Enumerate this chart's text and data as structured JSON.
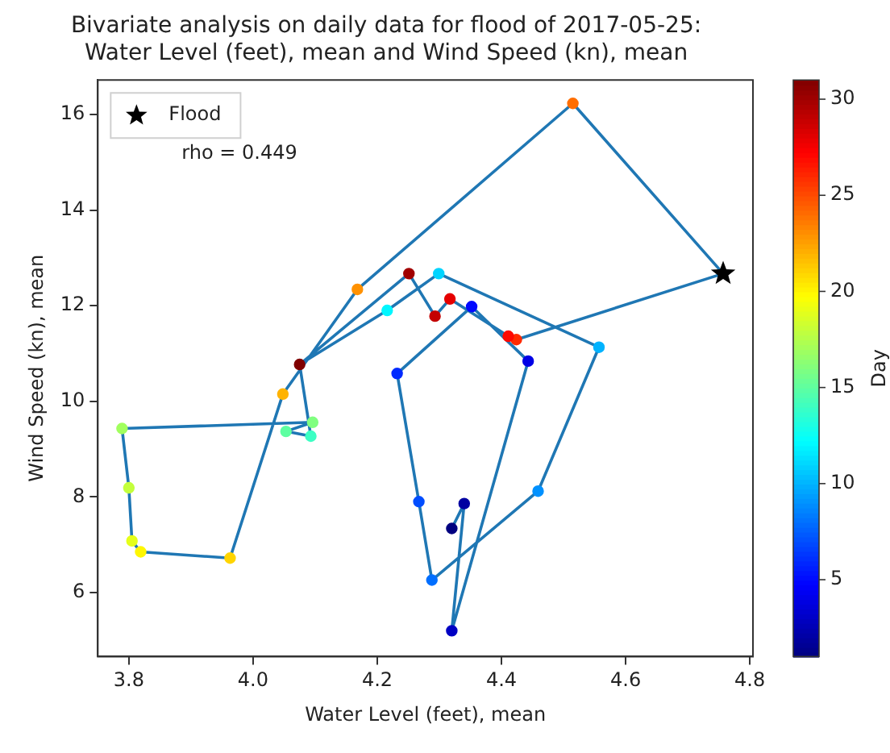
{
  "chart_data": {
    "type": "scatter",
    "title": "Bivariate analysis on daily data for flood of 2017-05-25:\nWater Level (feet), mean and Wind Speed (kn), mean",
    "xlabel": "Water Level (feet), mean",
    "ylabel": "Wind Speed (kn), mean",
    "clabel": "Day",
    "annotations": [
      "rho = 0.449"
    ],
    "series": [
      {
        "type": "line",
        "color": "#1f77b4",
        "marker": "none",
        "x": [
          4.32,
          4.34,
          4.32,
          4.443,
          4.352,
          4.232,
          4.267,
          4.288,
          4.459,
          4.557,
          4.299,
          4.216,
          4.075,
          4.093,
          4.053,
          4.096,
          3.789,
          3.8,
          3.805,
          3.819,
          3.963,
          4.048,
          4.168,
          4.515,
          4.757,
          4.424,
          4.411,
          4.317,
          4.293,
          4.251,
          4.075
        ],
        "values": [
          7.34,
          7.86,
          5.2,
          10.84,
          11.98,
          10.58,
          7.9,
          6.26,
          8.12,
          11.13,
          12.67,
          11.9,
          10.77,
          9.27,
          9.37,
          9.56,
          9.43,
          8.19,
          7.08,
          6.85,
          6.72,
          10.15,
          12.34,
          16.23,
          12.67,
          11.29,
          11.36,
          12.14,
          11.78,
          12.67,
          10.77
        ]
      },
      {
        "type": "scatter",
        "marker": "circle",
        "x": [
          4.32,
          4.34,
          4.32,
          4.443,
          4.352,
          4.232,
          4.267,
          4.288,
          4.459,
          4.557,
          4.299,
          4.216,
          4.093,
          4.053,
          4.096,
          3.789,
          3.8,
          3.805,
          3.819,
          3.963,
          4.048,
          4.168,
          4.515,
          4.424,
          4.411,
          4.317,
          4.293,
          4.251,
          4.075
        ],
        "values": [
          7.34,
          7.86,
          5.2,
          10.84,
          11.98,
          10.58,
          7.9,
          6.26,
          8.12,
          11.13,
          12.67,
          11.9,
          9.27,
          9.37,
          9.56,
          9.43,
          8.19,
          7.08,
          6.85,
          6.72,
          10.15,
          12.34,
          16.23,
          11.29,
          11.36,
          12.14,
          11.78,
          12.67,
          10.77
        ],
        "cvalues": [
          1,
          2,
          3,
          4,
          5,
          6,
          7,
          8,
          9,
          10,
          11,
          12,
          14,
          15,
          16,
          17,
          18,
          19,
          20,
          21,
          22,
          23,
          24,
          26,
          27,
          28,
          29,
          30,
          31
        ],
        "colors": [
          "#000080",
          "#0000a1",
          "#0000c4",
          "#0000e6",
          "#0009ff",
          "#002bff",
          "#004dff",
          "#006eff",
          "#0091ff",
          "#00b3ff",
          "#00d4ff",
          "#00f7ff",
          "#3cffc4",
          "#5effa1",
          "#80ff80",
          "#a1ff5e",
          "#c4ff3c",
          "#e6ff1a",
          "#fff700",
          "#ffd400",
          "#ffb300",
          "#ff9100",
          "#ff6e00",
          "#ff2b00",
          "#ff0900",
          "#e60000",
          "#c40000",
          "#a10000",
          "#800000"
        ]
      },
      {
        "type": "scatter",
        "name": "Flood",
        "color": "#000000",
        "marker": "star",
        "x": [
          4.757
        ],
        "values": [
          12.67
        ]
      }
    ],
    "xlim": [
      3.75,
      4.805
    ],
    "xticks": [
      3.8,
      {
        "value": 4,
        "label": "4.0"
      },
      4.2,
      4.4,
      4.6,
      4.8
    ],
    "ylim": [
      4.66,
      16.72
    ],
    "yticks": [
      6,
      8,
      10,
      12,
      14,
      16
    ],
    "clim": [
      1,
      31
    ],
    "cticks": [
      5,
      10,
      15,
      20,
      25,
      30
    ],
    "grid": false,
    "legend": "top left"
  }
}
